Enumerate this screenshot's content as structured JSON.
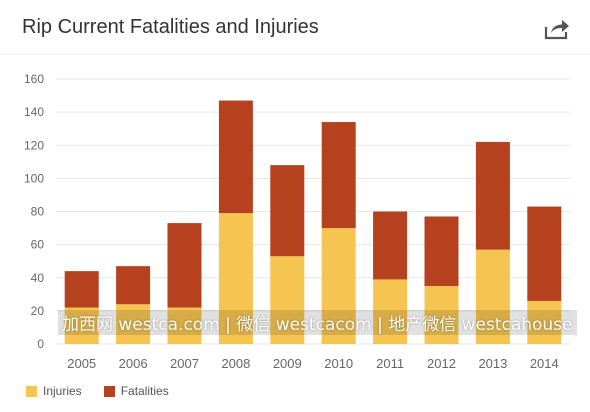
{
  "header": {
    "title": "Rip Current Fatalities and Injuries",
    "share_icon": "share-icon"
  },
  "colors": {
    "injuries": "#f5c451",
    "fatalities": "#b5411f",
    "grid": "#e6e6e6",
    "axis_text": "#666666"
  },
  "chart_data": {
    "type": "bar",
    "stacked": true,
    "title": "Rip Current Fatalities and Injuries",
    "xlabel": "",
    "ylabel": "",
    "categories": [
      "2005",
      "2006",
      "2007",
      "2008",
      "2009",
      "2010",
      "2011",
      "2012",
      "2013",
      "2014"
    ],
    "series": [
      {
        "name": "Injuries",
        "values": [
          22,
          24,
          22,
          79,
          53,
          70,
          39,
          35,
          57,
          26
        ]
      },
      {
        "name": "Fatalities",
        "values": [
          22,
          23,
          51,
          68,
          55,
          64,
          41,
          42,
          65,
          57
        ]
      }
    ],
    "ylim": [
      0,
      160
    ],
    "yticks": [
      0,
      20,
      40,
      60,
      80,
      100,
      120,
      140,
      160
    ],
    "grid": true,
    "legend_position": "bottom-left"
  },
  "legend": {
    "items": [
      {
        "label": "Injuries"
      },
      {
        "label": "Fatalities"
      }
    ]
  },
  "watermark": {
    "text": "加西网 westca.com | 微信 westcacom | 地产微信 westcahouse"
  }
}
